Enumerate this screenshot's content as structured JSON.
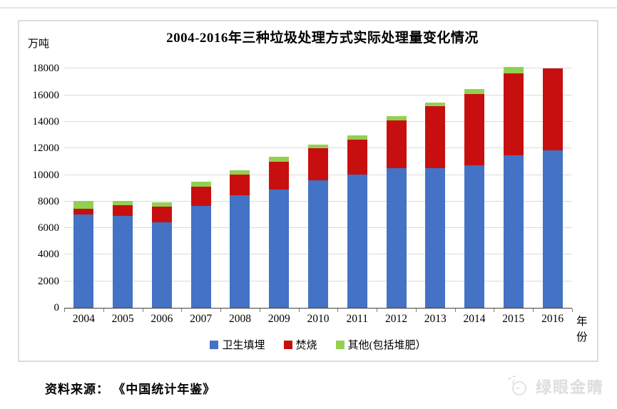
{
  "page": {
    "title": "2004-2016年三种垃圾处理方式实际处理量变化情况",
    "y_unit": "万吨",
    "x_unit": "年份",
    "source": "资料来源： 《中国统计年鉴》",
    "watermark": "绿眼金睛"
  },
  "style_colors": {
    "gridline": "#dadada",
    "axis": "#3f3f3f"
  },
  "chart_data": {
    "type": "bar",
    "stacked": true,
    "title": "2004-2016年三种垃圾处理方式实际处理量变化情况",
    "ylabel": "万吨",
    "xlabel": "年份",
    "categories": [
      "2004",
      "2005",
      "2006",
      "2007",
      "2008",
      "2009",
      "2010",
      "2011",
      "2012",
      "2013",
      "2014",
      "2015",
      "2016"
    ],
    "series": [
      {
        "name": "卫生填埋",
        "color": "#4472c4",
        "values": [
          7000,
          6900,
          6450,
          7650,
          8450,
          8900,
          9600,
          10050,
          10500,
          10500,
          10750,
          11500,
          11850
        ]
      },
      {
        "name": "焚烧",
        "color": "#c80f0f",
        "values": [
          430,
          800,
          1150,
          1450,
          1570,
          2100,
          2400,
          2600,
          3600,
          4700,
          5350,
          6150,
          6150
        ]
      },
      {
        "name": "其他(包括堆肥）",
        "color": "#92d050",
        "values": [
          620,
          350,
          350,
          400,
          330,
          350,
          300,
          350,
          350,
          250,
          350,
          450,
          0
        ]
      }
    ],
    "totals": [
      8050,
      8050,
      7950,
      9500,
      10350,
      11350,
      12300,
      13000,
      14450,
      15450,
      16450,
      18100,
      18000
    ],
    "ylim": [
      0,
      18000
    ],
    "ytick_step": 2000,
    "grid": true,
    "legend_position": "bottom"
  }
}
